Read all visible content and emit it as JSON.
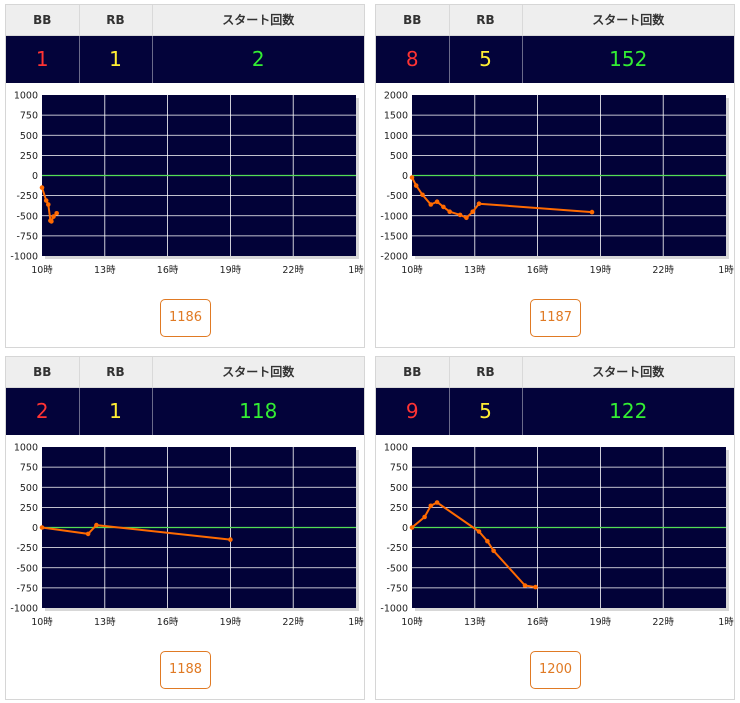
{
  "headers": {
    "bb": "BB",
    "rb": "RB",
    "starts": "スタート回数"
  },
  "colors": {
    "bb": "#ff3333",
    "rb": "#ffee33",
    "starts": "#33ee33",
    "plot_bg": "#020238",
    "line": "#ff6a00",
    "zero_line": "#55dd55"
  },
  "machines": [
    {
      "bb": "1",
      "rb": "1",
      "starts": "2",
      "machine_no": "1186",
      "chart_data": {
        "type": "line",
        "x_ticks": [
          "10時",
          "13時",
          "16時",
          "19時",
          "22時",
          "1時"
        ],
        "x_unit": "hours from 10時",
        "xlim": [
          0,
          15
        ],
        "ylim": [
          -1000,
          1000
        ],
        "y_ticks": [
          "1000",
          "750",
          "500",
          "250",
          "0",
          "-250",
          "-500",
          "-750",
          "-1000"
        ],
        "grid": true,
        "points": [
          [
            0,
            -150
          ],
          [
            0.2,
            -310
          ],
          [
            0.3,
            -360
          ],
          [
            0.4,
            -560
          ],
          [
            0.45,
            -570
          ],
          [
            0.55,
            -510
          ],
          [
            0.7,
            -470
          ]
        ]
      }
    },
    {
      "bb": "8",
      "rb": "5",
      "starts": "152",
      "machine_no": "1187",
      "chart_data": {
        "type": "line",
        "x_ticks": [
          "10時",
          "13時",
          "16時",
          "19時",
          "22時",
          "1時"
        ],
        "x_unit": "hours from 10時",
        "xlim": [
          0,
          15
        ],
        "ylim": [
          -2000,
          2000
        ],
        "y_ticks": [
          "2000",
          "1500",
          "1000",
          "500",
          "0",
          "-500",
          "-1000",
          "-1500",
          "-2000"
        ],
        "grid": true,
        "points": [
          [
            0,
            -50
          ],
          [
            0.2,
            -250
          ],
          [
            0.5,
            -480
          ],
          [
            0.9,
            -720
          ],
          [
            1.2,
            -650
          ],
          [
            1.5,
            -780
          ],
          [
            1.8,
            -900
          ],
          [
            2.3,
            -980
          ],
          [
            2.6,
            -1050
          ],
          [
            2.9,
            -900
          ],
          [
            3.2,
            -700
          ],
          [
            8.6,
            -910
          ]
        ]
      }
    },
    {
      "bb": "2",
      "rb": "1",
      "starts": "118",
      "machine_no": "1188",
      "chart_data": {
        "type": "line",
        "x_ticks": [
          "10時",
          "13時",
          "16時",
          "19時",
          "22時",
          "1時"
        ],
        "x_unit": "hours from 10時",
        "xlim": [
          0,
          15
        ],
        "ylim": [
          -1000,
          1000
        ],
        "y_ticks": [
          "1000",
          "750",
          "500",
          "250",
          "0",
          "-250",
          "-500",
          "-750",
          "-1000"
        ],
        "grid": true,
        "points": [
          [
            0,
            0
          ],
          [
            2.2,
            -80
          ],
          [
            2.6,
            30
          ],
          [
            9,
            -150
          ]
        ]
      }
    },
    {
      "bb": "9",
      "rb": "5",
      "starts": "122",
      "machine_no": "1200",
      "chart_data": {
        "type": "line",
        "x_ticks": [
          "10時",
          "13時",
          "16時",
          "19時",
          "22時",
          "1時"
        ],
        "x_unit": "hours from 10時",
        "xlim": [
          0,
          15
        ],
        "ylim": [
          -1000,
          1000
        ],
        "y_ticks": [
          "1000",
          "750",
          "500",
          "250",
          "0",
          "-250",
          "-500",
          "-750",
          "-1000"
        ],
        "grid": true,
        "points": [
          [
            0,
            0
          ],
          [
            0.6,
            130
          ],
          [
            0.9,
            270
          ],
          [
            1.2,
            310
          ],
          [
            3.2,
            -50
          ],
          [
            3.6,
            -170
          ],
          [
            3.9,
            -290
          ],
          [
            5.4,
            -720
          ],
          [
            5.9,
            -740
          ]
        ]
      }
    }
  ]
}
